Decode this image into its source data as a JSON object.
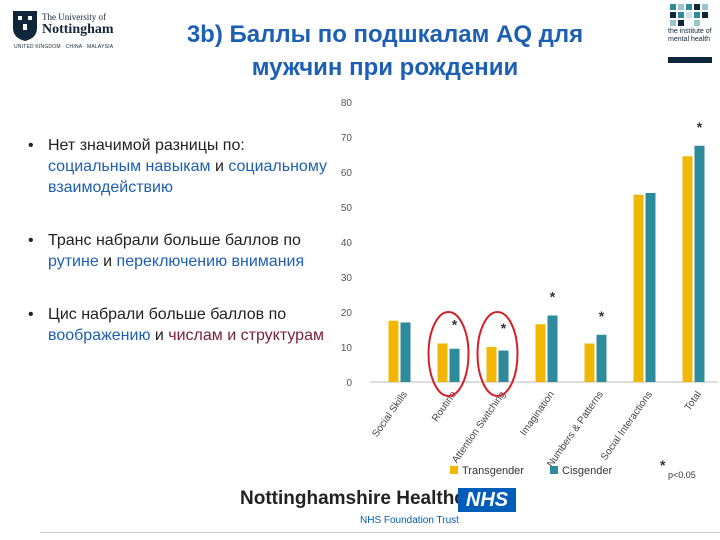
{
  "header": {
    "title_line1": "3b) Баллы по подшкалам AQ для",
    "title_line2": "мужчин при рождении"
  },
  "logo_uon": {
    "line1": "The University of",
    "line2": "Nottingham",
    "line3": "UNITED KINGDOM · CHINA · MALAYSIA"
  },
  "logo_imh": {
    "text": "the institute of mental health"
  },
  "bullets": [
    {
      "prefix": "Нет значимой разницы по:",
      "hl1": "социальным навыкам",
      "mid": " и ",
      "hl2": "социальному взаимодействию"
    },
    {
      "prefix": "Транс набрали больше баллов по ",
      "hl1": "рутине",
      "mid": " и ",
      "hl2": "переключению внимания"
    },
    {
      "prefix": "Цис набрали больше баллов по ",
      "hl1": "воображению",
      "mid": " и ",
      "hl2": "числам и структурам"
    }
  ],
  "chart_data": {
    "type": "bar",
    "categories": [
      "Social Skills",
      "Routine",
      "Attention Switching",
      "Imagination",
      "Numbers & Patterns",
      "Social Interactions",
      "Total"
    ],
    "series": [
      {
        "name": "Transgender",
        "color": "#f2b705",
        "values": [
          17.5,
          11,
          10,
          16.5,
          11,
          53.5,
          64.5
        ]
      },
      {
        "name": "Cisgender",
        "color": "#2e8b9b",
        "values": [
          17,
          9.5,
          9,
          19,
          13.5,
          54,
          67.5
        ]
      }
    ],
    "ylim": [
      0,
      80
    ],
    "yticks": [
      "0",
      "10",
      "20",
      "30",
      "40",
      "50",
      "60",
      "70",
      "80"
    ],
    "significant_marker": "*",
    "significant_categories": [
      1,
      2,
      3,
      4,
      6
    ],
    "legend_note": "p<0.05",
    "legend_position": "bottom",
    "grid": false
  },
  "footer": {
    "org": "Nottinghamshire Healthcare",
    "nhs": "NHS",
    "trust": "NHS Foundation Trust"
  }
}
